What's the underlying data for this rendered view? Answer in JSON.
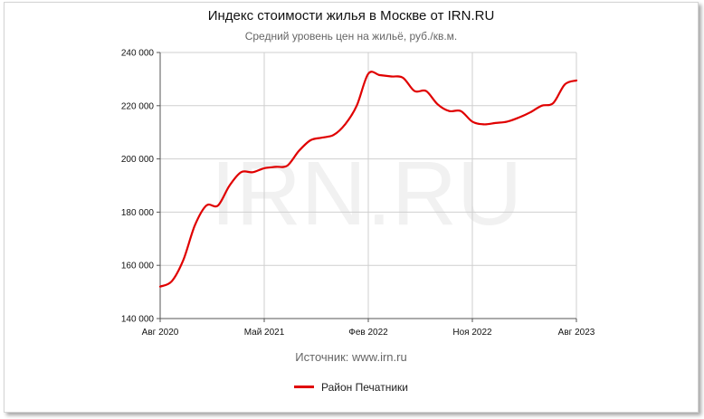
{
  "title": "Индекс стоимости жилья в Москве от IRN.RU",
  "subtitle": "Средний уровень цен на жильё, руб./кв.м.",
  "source": "Источник: www.irn.ru",
  "watermark": "IRN.RU",
  "colors": {
    "series": "#e00000",
    "grid": "#cfcfcf",
    "axis": "#555555"
  },
  "chart_data": {
    "type": "line",
    "title": "Индекс стоимости жилья в Москве от IRN.RU",
    "subtitle": "Средний уровень цен на жильё, руб./кв.м.",
    "xlabel": "",
    "ylabel": "",
    "xlim": [
      "2020-08",
      "2023-08"
    ],
    "ylim": [
      140000,
      240000
    ],
    "grid": true,
    "legend_position": "bottom",
    "x_ticks": [
      "Авг 2020",
      "Май 2021",
      "Фев 2022",
      "Ноя 2022",
      "Авг 2023"
    ],
    "y_ticks": [
      "140 000",
      "160 000",
      "180 000",
      "200 000",
      "220 000",
      "240 000"
    ],
    "x_tick_values": [
      "2020-08",
      "2021-05",
      "2022-02",
      "2022-11",
      "2023-08"
    ],
    "y_tick_values": [
      140000,
      160000,
      180000,
      200000,
      220000,
      240000
    ],
    "series": [
      {
        "name": "Район Печатники",
        "x": [
          "2020-08",
          "2020-09",
          "2020-10",
          "2020-11",
          "2020-12",
          "2021-01",
          "2021-02",
          "2021-03",
          "2021-04",
          "2021-05",
          "2021-06",
          "2021-07",
          "2021-08",
          "2021-09",
          "2021-10",
          "2021-11",
          "2021-12",
          "2022-01",
          "2022-02",
          "2022-03",
          "2022-04",
          "2022-05",
          "2022-06",
          "2022-07",
          "2022-08",
          "2022-09",
          "2022-10",
          "2022-11",
          "2022-12",
          "2023-01",
          "2023-02",
          "2023-03",
          "2023-04",
          "2023-05",
          "2023-06",
          "2023-07",
          "2023-08"
        ],
        "values": [
          152000,
          154000,
          162000,
          175000,
          182500,
          182500,
          190000,
          195000,
          195000,
          196500,
          197000,
          197500,
          203000,
          207000,
          208000,
          209000,
          213000,
          220000,
          232000,
          231500,
          231000,
          230500,
          225500,
          225500,
          220500,
          218000,
          218000,
          214000,
          213000,
          213500,
          214000,
          215500,
          217500,
          220000,
          221000,
          228000,
          229500
        ]
      }
    ]
  }
}
